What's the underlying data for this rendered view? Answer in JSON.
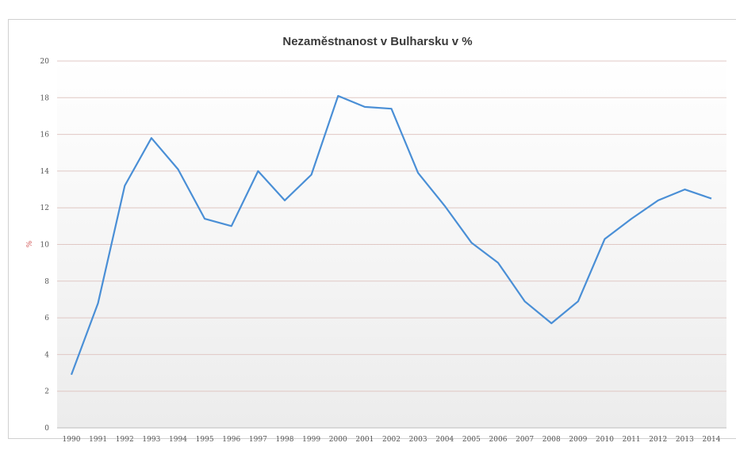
{
  "chart_data": {
    "type": "line",
    "title": "Nezaměstnanost v Bulharsku v %",
    "xlabel": "",
    "ylabel": "%",
    "ylim": [
      0,
      20
    ],
    "yticks": [
      "0",
      "2",
      "4",
      "6",
      "8",
      "10",
      "12",
      "14",
      "16",
      "18",
      "20"
    ],
    "grid": true,
    "categories": [
      "1990",
      "1991",
      "1992",
      "1993",
      "1994",
      "1995",
      "1996",
      "1997",
      "1998",
      "1999",
      "2000",
      "2001",
      "2002",
      "2003",
      "2004",
      "2005",
      "2006",
      "2007",
      "2008",
      "2009",
      "2010",
      "2011",
      "2012",
      "2013",
      "2014"
    ],
    "series": [
      {
        "name": "Nezaměstnanost",
        "color": "#4a8fd6",
        "values": [
          2.9,
          6.8,
          13.2,
          15.8,
          14.1,
          11.4,
          11.0,
          14.0,
          12.4,
          13.8,
          18.1,
          17.5,
          17.4,
          13.9,
          12.1,
          10.1,
          9.0,
          6.9,
          5.7,
          6.9,
          10.3,
          11.4,
          12.4,
          13.0,
          12.5
        ]
      }
    ]
  }
}
